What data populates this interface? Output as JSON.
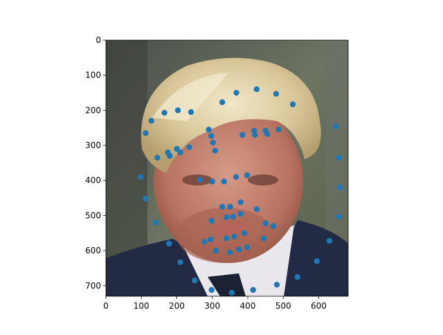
{
  "chart_data": {
    "type": "scatter",
    "title": "",
    "xlabel": "",
    "ylabel": "",
    "xlim": [
      0,
      683
    ],
    "ylim": [
      730,
      0
    ],
    "xticks": [
      0,
      100,
      200,
      300,
      400,
      500,
      600
    ],
    "yticks": [
      0,
      100,
      200,
      300,
      400,
      500,
      600,
      700
    ],
    "grid": false,
    "legend": false,
    "image": "photograph of a man with blond hair in a dark suit (background image under points)",
    "series": [
      {
        "color": "#1f77b4",
        "points": [
          {
            "x": 128,
            "y": 230
          },
          {
            "x": 165,
            "y": 207
          },
          {
            "x": 203,
            "y": 200
          },
          {
            "x": 240,
            "y": 205
          },
          {
            "x": 112,
            "y": 265
          },
          {
            "x": 145,
            "y": 335
          },
          {
            "x": 175,
            "y": 320
          },
          {
            "x": 180,
            "y": 330
          },
          {
            "x": 200,
            "y": 310
          },
          {
            "x": 210,
            "y": 320
          },
          {
            "x": 235,
            "y": 305
          },
          {
            "x": 98,
            "y": 390
          },
          {
            "x": 112,
            "y": 452
          },
          {
            "x": 140,
            "y": 520
          },
          {
            "x": 178,
            "y": 580
          },
          {
            "x": 210,
            "y": 633
          },
          {
            "x": 250,
            "y": 685
          },
          {
            "x": 298,
            "y": 712
          },
          {
            "x": 355,
            "y": 720
          },
          {
            "x": 415,
            "y": 712
          },
          {
            "x": 482,
            "y": 697
          },
          {
            "x": 540,
            "y": 675
          },
          {
            "x": 595,
            "y": 630
          },
          {
            "x": 630,
            "y": 572
          },
          {
            "x": 657,
            "y": 503
          },
          {
            "x": 660,
            "y": 420
          },
          {
            "x": 657,
            "y": 335
          },
          {
            "x": 648,
            "y": 245
          },
          {
            "x": 527,
            "y": 183
          },
          {
            "x": 480,
            "y": 153
          },
          {
            "x": 425,
            "y": 140
          },
          {
            "x": 368,
            "y": 150
          },
          {
            "x": 328,
            "y": 177
          },
          {
            "x": 290,
            "y": 255
          },
          {
            "x": 297,
            "y": 273
          },
          {
            "x": 302,
            "y": 292
          },
          {
            "x": 308,
            "y": 315
          },
          {
            "x": 385,
            "y": 270
          },
          {
            "x": 418,
            "y": 258
          },
          {
            "x": 420,
            "y": 270
          },
          {
            "x": 450,
            "y": 258
          },
          {
            "x": 455,
            "y": 268
          },
          {
            "x": 487,
            "y": 255
          },
          {
            "x": 265,
            "y": 398
          },
          {
            "x": 300,
            "y": 403
          },
          {
            "x": 333,
            "y": 403
          },
          {
            "x": 367,
            "y": 390
          },
          {
            "x": 398,
            "y": 385
          },
          {
            "x": 380,
            "y": 462
          },
          {
            "x": 328,
            "y": 475
          },
          {
            "x": 350,
            "y": 475
          },
          {
            "x": 380,
            "y": 495
          },
          {
            "x": 340,
            "y": 505
          },
          {
            "x": 358,
            "y": 503
          },
          {
            "x": 425,
            "y": 482
          },
          {
            "x": 298,
            "y": 515
          },
          {
            "x": 450,
            "y": 522
          },
          {
            "x": 472,
            "y": 530
          },
          {
            "x": 390,
            "y": 550
          },
          {
            "x": 362,
            "y": 560
          },
          {
            "x": 340,
            "y": 565
          },
          {
            "x": 295,
            "y": 568
          },
          {
            "x": 278,
            "y": 575
          },
          {
            "x": 445,
            "y": 565
          },
          {
            "x": 398,
            "y": 590
          },
          {
            "x": 375,
            "y": 597
          },
          {
            "x": 350,
            "y": 605
          },
          {
            "x": 310,
            "y": 600
          }
        ]
      }
    ]
  }
}
